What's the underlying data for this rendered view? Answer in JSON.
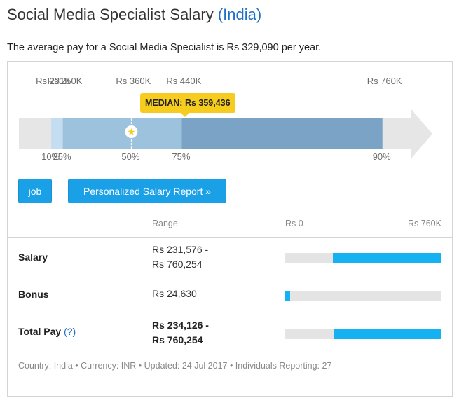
{
  "header": {
    "title": "Social Media Specialist Salary",
    "country": "(India)",
    "summary": "The average pay for a Social Media Specialist is Rs 329,090 per year."
  },
  "chart_data": {
    "type": "range",
    "min": 180000,
    "max": 840000,
    "tick_labels": [
      {
        "label": "Rs 231K",
        "value": 231576
      },
      {
        "label": "Rs 250K",
        "value": 250000
      },
      {
        "label": "Rs 360K",
        "value": 359436
      },
      {
        "label": "Rs 440K",
        "value": 440000
      },
      {
        "label": "Rs 760K",
        "value": 760254
      }
    ],
    "percentiles": [
      {
        "label": "10%",
        "value": 231576
      },
      {
        "label": "25%",
        "value": 250000
      },
      {
        "label": "50%",
        "value": 359436
      },
      {
        "label": "75%",
        "value": 440000
      },
      {
        "label": "90%",
        "value": 760254
      }
    ],
    "median_label": "MEDIAN: Rs 359,436",
    "colors": {
      "track": "#e6e6e6",
      "p10_p25": "#c4ddf0",
      "p25_p75": "#9cc2de",
      "p75_p90": "#7aa3c6",
      "marker": "#f6cc1f"
    }
  },
  "buttons": {
    "job": "job",
    "report": "Personalized Salary Report »"
  },
  "table": {
    "col_range": "Range",
    "col_min": "Rs 0",
    "col_max": "Rs 760K",
    "scale_max": 760254,
    "rows": [
      {
        "label": "Salary",
        "help": "",
        "value_line1": "Rs 231,576 -",
        "value_line2": "Rs 760,254",
        "bold": false,
        "low": 231576,
        "high": 760254
      },
      {
        "label": "Bonus",
        "help": "",
        "value_line1": "Rs 24,630",
        "value_line2": "",
        "bold": false,
        "low": 0,
        "high": 24630
      },
      {
        "label": "Total Pay",
        "help": "(?)",
        "value_line1": "Rs 234,126 -",
        "value_line2": "Rs 760,254",
        "bold": true,
        "low": 234126,
        "high": 760254
      }
    ]
  },
  "footer": "Country: India • Currency: INR • Updated: 24 Jul 2017 • Individuals Reporting: 27"
}
